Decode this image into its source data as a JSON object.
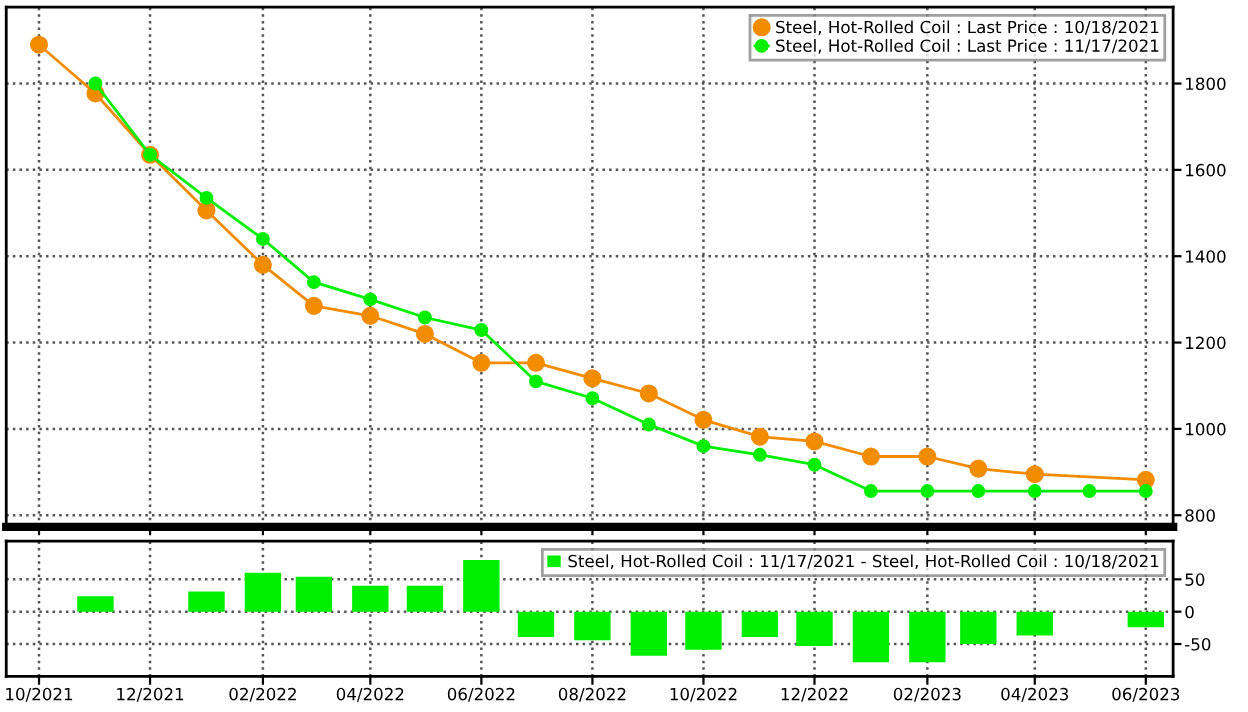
{
  "chart_data": [
    {
      "type": "line",
      "x": [
        "2021-10",
        "2021-11",
        "2021-12",
        "2022-01",
        "2022-02",
        "2022-03",
        "2022-04",
        "2022-05",
        "2022-06",
        "2022-07",
        "2022-08",
        "2022-09",
        "2022-10",
        "2022-11",
        "2022-12",
        "2023-01",
        "2023-02",
        "2023-03",
        "2023-04",
        "2023-05",
        "2023-06"
      ],
      "series": [
        {
          "name": "Steel, Hot-Rolled Coil : Last Price : 10/18/2021",
          "color": "#f28c00",
          "values": [
            1890,
            1777,
            1635,
            1506,
            1380,
            1285,
            1262,
            1220,
            1153,
            1153,
            1117,
            1082,
            1021,
            982,
            971,
            936,
            936,
            908,
            895,
            null,
            882
          ]
        },
        {
          "name": "Steel, Hot-Rolled Coil : Last Price : 11/17/2021",
          "color": "#00ee00",
          "values": [
            null,
            1800,
            1635,
            1535,
            1440,
            1340,
            1300,
            1258,
            1229,
            1110,
            1071,
            1010,
            960,
            940,
            917,
            856,
            856,
            856,
            856,
            856,
            856
          ]
        }
      ],
      "xlim": [
        "2021-09-13",
        "2023-06-16"
      ],
      "xticks": [
        {
          "value": "2021-10",
          "label": null
        },
        {
          "value": "2021-12",
          "label": null
        },
        {
          "value": "2022-02",
          "label": null
        },
        {
          "value": "2022-04",
          "label": null
        },
        {
          "value": "2022-06",
          "label": null
        },
        {
          "value": "2022-08",
          "label": null
        },
        {
          "value": "2022-10",
          "label": null
        },
        {
          "value": "2022-12",
          "label": null
        },
        {
          "value": "2023-02",
          "label": null
        },
        {
          "value": "2023-04",
          "label": null
        },
        {
          "value": "2023-06",
          "label": null
        }
      ],
      "ylim": [
        773,
        1977
      ],
      "yticks": [
        800,
        1000,
        1200,
        1400,
        1600,
        1800
      ],
      "tick_labels": "y",
      "grid": true,
      "legend": "top right",
      "marker": "circle",
      "line_style": "solid"
    },
    {
      "type": "bar",
      "x": [
        "2021-11",
        "2021-12",
        "2022-01",
        "2022-02",
        "2022-03",
        "2022-04",
        "2022-05",
        "2022-06",
        "2022-07",
        "2022-08",
        "2022-09",
        "2022-10",
        "2022-11",
        "2022-12",
        "2023-01",
        "2023-02",
        "2023-03",
        "2023-04",
        "2023-05",
        "2023-06"
      ],
      "series": [
        {
          "name": "Steel, Hot-Rolled Coil : 11/17/2021 - Steel, Hot-Rolled Coil : 10/18/2021",
          "color": "#00ee00",
          "values": [
            24,
            0,
            31,
            60,
            54,
            40,
            40,
            80,
            -39,
            -44,
            -68,
            -59,
            -39,
            -53,
            -78,
            -78,
            -50,
            -37,
            null,
            -24
          ]
        }
      ],
      "xlim": [
        "2021-09-13",
        "2023-06-16"
      ],
      "xticks": [
        {
          "value": "2021-10",
          "label": "10/2021"
        },
        {
          "value": "2021-12",
          "label": "12/2021"
        },
        {
          "value": "2022-02",
          "label": "02/2022"
        },
        {
          "value": "2022-04",
          "label": "04/2022"
        },
        {
          "value": "2022-06",
          "label": "06/2022"
        },
        {
          "value": "2022-08",
          "label": "08/2022"
        },
        {
          "value": "2022-10",
          "label": "10/2022"
        },
        {
          "value": "2022-12",
          "label": "12/2022"
        },
        {
          "value": "2023-02",
          "label": "02/2023"
        },
        {
          "value": "2023-04",
          "label": "04/2023"
        },
        {
          "value": "2023-06",
          "label": "06/2023"
        }
      ],
      "ylim": [
        -100,
        109
      ],
      "yticks": [
        -50,
        0,
        50
      ],
      "grid": true,
      "legend": "top right"
    }
  ]
}
